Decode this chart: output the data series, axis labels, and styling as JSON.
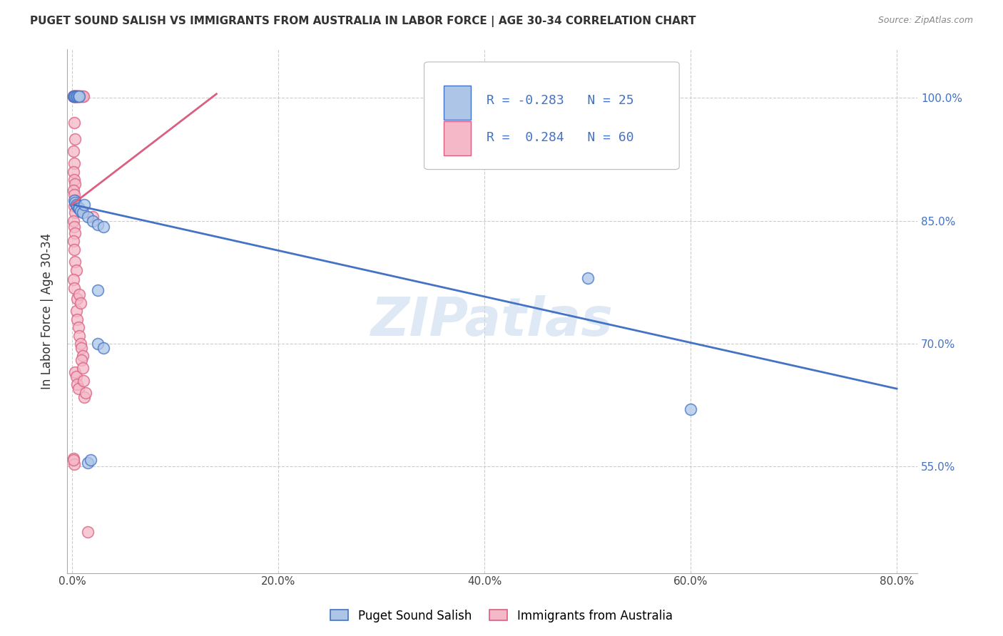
{
  "title": "PUGET SOUND SALISH VS IMMIGRANTS FROM AUSTRALIA IN LABOR FORCE | AGE 30-34 CORRELATION CHART",
  "source": "Source: ZipAtlas.com",
  "ylabel": "In Labor Force | Age 30-34",
  "xlim": [
    -0.005,
    0.82
  ],
  "ylim": [
    0.42,
    1.06
  ],
  "xtick_labels": [
    "0.0%",
    "20.0%",
    "40.0%",
    "60.0%",
    "80.0%"
  ],
  "xtick_vals": [
    0.0,
    0.2,
    0.4,
    0.6,
    0.8
  ],
  "ytick_labels": [
    "55.0%",
    "70.0%",
    "85.0%",
    "100.0%"
  ],
  "ytick_vals": [
    0.55,
    0.7,
    0.85,
    1.0
  ],
  "blue_label": "Puget Sound Salish",
  "pink_label": "Immigrants from Australia",
  "blue_R": "-0.283",
  "blue_N": "25",
  "pink_R": "0.284",
  "pink_N": "60",
  "blue_color": "#adc6e8",
  "pink_color": "#f5b8c8",
  "blue_line_color": "#4472c4",
  "pink_line_color": "#d96080",
  "watermark": "ZIPatlas",
  "blue_line_x": [
    0.0,
    0.8
  ],
  "blue_line_y": [
    0.87,
    0.645
  ],
  "pink_line_x": [
    0.0,
    0.14
  ],
  "pink_line_y": [
    0.87,
    1.005
  ],
  "blue_points": [
    [
      0.001,
      1.002
    ],
    [
      0.002,
      1.002
    ],
    [
      0.003,
      1.002
    ],
    [
      0.004,
      1.002
    ],
    [
      0.005,
      1.002
    ],
    [
      0.006,
      1.002
    ],
    [
      0.007,
      1.002
    ],
    [
      0.002,
      0.875
    ],
    [
      0.003,
      0.872
    ],
    [
      0.004,
      0.87
    ],
    [
      0.005,
      0.868
    ],
    [
      0.006,
      0.865
    ],
    [
      0.007,
      0.865
    ],
    [
      0.008,
      0.862
    ],
    [
      0.01,
      0.86
    ],
    [
      0.012,
      0.87
    ],
    [
      0.015,
      0.855
    ],
    [
      0.02,
      0.85
    ],
    [
      0.025,
      0.845
    ],
    [
      0.03,
      0.843
    ],
    [
      0.025,
      0.765
    ],
    [
      0.025,
      0.7
    ],
    [
      0.03,
      0.695
    ],
    [
      0.015,
      0.555
    ],
    [
      0.018,
      0.558
    ],
    [
      0.5,
      0.78
    ],
    [
      0.6,
      0.62
    ]
  ],
  "pink_points": [
    [
      0.001,
      1.002
    ],
    [
      0.001,
      1.002
    ],
    [
      0.002,
      1.002
    ],
    [
      0.002,
      1.002
    ],
    [
      0.003,
      1.002
    ],
    [
      0.003,
      1.002
    ],
    [
      0.004,
      1.002
    ],
    [
      0.004,
      1.002
    ],
    [
      0.005,
      1.002
    ],
    [
      0.005,
      1.002
    ],
    [
      0.006,
      1.002
    ],
    [
      0.007,
      1.002
    ],
    [
      0.008,
      1.002
    ],
    [
      0.009,
      1.002
    ],
    [
      0.01,
      1.002
    ],
    [
      0.011,
      1.002
    ],
    [
      0.002,
      0.97
    ],
    [
      0.003,
      0.95
    ],
    [
      0.001,
      0.935
    ],
    [
      0.002,
      0.92
    ],
    [
      0.001,
      0.91
    ],
    [
      0.002,
      0.9
    ],
    [
      0.003,
      0.895
    ],
    [
      0.001,
      0.887
    ],
    [
      0.002,
      0.882
    ],
    [
      0.003,
      0.875
    ],
    [
      0.002,
      0.868
    ],
    [
      0.003,
      0.86
    ],
    [
      0.001,
      0.85
    ],
    [
      0.002,
      0.843
    ],
    [
      0.003,
      0.835
    ],
    [
      0.001,
      0.825
    ],
    [
      0.002,
      0.815
    ],
    [
      0.003,
      0.8
    ],
    [
      0.004,
      0.79
    ],
    [
      0.001,
      0.778
    ],
    [
      0.002,
      0.768
    ],
    [
      0.005,
      0.755
    ],
    [
      0.004,
      0.74
    ],
    [
      0.005,
      0.73
    ],
    [
      0.006,
      0.72
    ],
    [
      0.007,
      0.71
    ],
    [
      0.008,
      0.7
    ],
    [
      0.009,
      0.695
    ],
    [
      0.01,
      0.685
    ],
    [
      0.003,
      0.665
    ],
    [
      0.004,
      0.66
    ],
    [
      0.005,
      0.65
    ],
    [
      0.006,
      0.645
    ],
    [
      0.012,
      0.635
    ],
    [
      0.001,
      0.56
    ],
    [
      0.002,
      0.553
    ],
    [
      0.02,
      0.855
    ],
    [
      0.015,
      0.47
    ],
    [
      0.001,
      0.558
    ],
    [
      0.007,
      0.76
    ],
    [
      0.008,
      0.75
    ],
    [
      0.009,
      0.68
    ],
    [
      0.01,
      0.67
    ],
    [
      0.011,
      0.655
    ],
    [
      0.013,
      0.64
    ]
  ]
}
